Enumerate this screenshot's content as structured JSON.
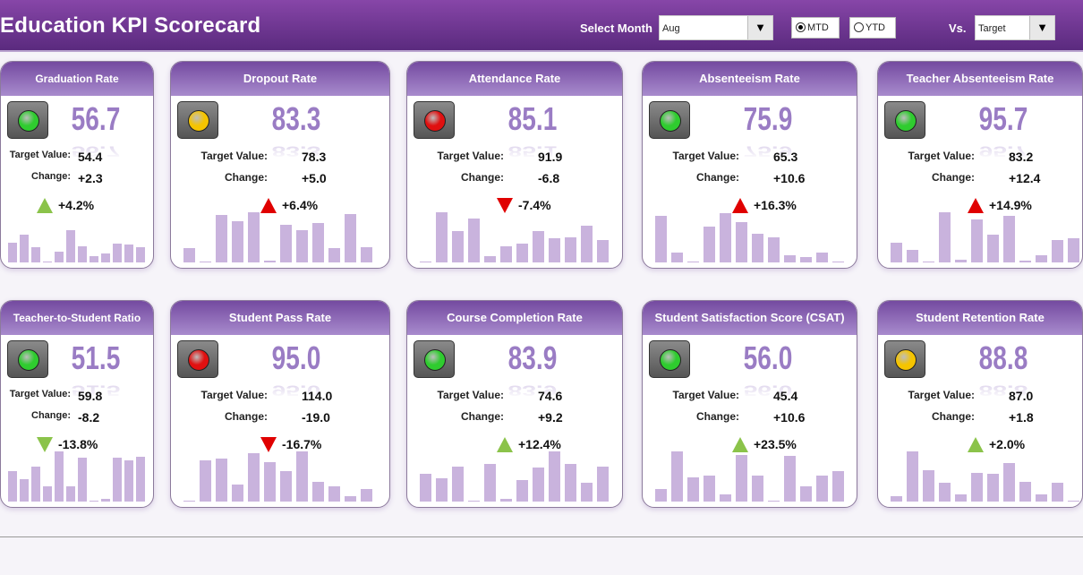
{
  "header": {
    "title": "Education KPI Scorecard",
    "select_month_label": "Select Month",
    "month": "Aug",
    "mtd": "MTD",
    "ytd": "YTD",
    "period_selected": "MTD",
    "vs_label": "Vs.",
    "vs_value": "Target",
    "dropdown_icon": "▼"
  },
  "labels": {
    "target": "Target Value:",
    "change": "Change:"
  },
  "colors": {
    "green": "#8bc34a",
    "red": "#e00000",
    "light_green": "#2fcc2f",
    "light_red": "#e01010",
    "light_yellow": "#f5c400",
    "bar": "#c9b3dd",
    "value": "#9a7cc4"
  },
  "cards": [
    {
      "title": "Graduation Rate",
      "value": "56.7",
      "target": "54.4",
      "change": "+2.3",
      "pct": "+4.2%",
      "dir": "up",
      "arrow_color": "green",
      "light": "green",
      "bars": [
        40,
        55,
        30,
        2,
        22,
        65,
        33,
        12,
        18,
        38,
        35,
        30
      ]
    },
    {
      "title": "Dropout Rate",
      "value": "83.3",
      "target": "78.3",
      "change": "+5.0",
      "pct": "+6.4%",
      "dir": "up",
      "arrow_color": "red",
      "light": "yellow",
      "bars": [
        28,
        2,
        95,
        82,
        100,
        4,
        75,
        65,
        78,
        28,
        96,
        30
      ]
    },
    {
      "title": "Attendance Rate",
      "value": "85.1",
      "target": "91.9",
      "change": "-6.8",
      "pct": "-7.4%",
      "dir": "down",
      "arrow_color": "red",
      "light": "red",
      "bars": [
        2,
        100,
        62,
        87,
        12,
        32,
        37,
        62,
        48,
        50,
        74,
        44
      ]
    },
    {
      "title": "Absenteeism Rate",
      "value": "75.9",
      "target": "65.3",
      "change": "+10.6",
      "pct": "+16.3%",
      "dir": "up",
      "arrow_color": "red",
      "light": "green",
      "bars": [
        92,
        20,
        1,
        72,
        98,
        80,
        58,
        50,
        15,
        10,
        20,
        1
      ]
    },
    {
      "title": "Teacher Absenteeism Rate",
      "value": "95.7",
      "target": "83.2",
      "change": "+12.4",
      "pct": "+14.9%",
      "dir": "up",
      "arrow_color": "red",
      "light": "green",
      "bars": [
        40,
        25,
        2,
        100,
        5,
        85,
        55,
        92,
        4,
        14,
        45,
        48
      ]
    },
    {
      "title": "Teacher-to-Student Ratio",
      "value": "51.5",
      "target": "59.8",
      "change": "-8.2",
      "pct": "-13.8%",
      "dir": "down",
      "arrow_color": "green",
      "light": "green",
      "bars": [
        60,
        45,
        70,
        30,
        100,
        30,
        88,
        2,
        5,
        88,
        82,
        90
      ]
    },
    {
      "title": "Student Pass Rate",
      "value": "95.0",
      "target": "114.0",
      "change": "-19.0",
      "pct": "-16.7%",
      "dir": "down",
      "arrow_color": "red",
      "light": "red",
      "bars": [
        2,
        82,
        86,
        34,
        96,
        78,
        60,
        100,
        40,
        30,
        11,
        25
      ]
    },
    {
      "title": "Course Completion Rate",
      "value": "83.9",
      "target": "74.6",
      "change": "+9.2",
      "pct": "+12.4%",
      "dir": "up",
      "arrow_color": "green",
      "light": "green",
      "bars": [
        55,
        47,
        70,
        2,
        75,
        6,
        43,
        68,
        100,
        75,
        37,
        70
      ]
    },
    {
      "title": "Student Satisfaction Score (CSAT)",
      "value": "56.0",
      "target": "45.4",
      "change": "+10.6",
      "pct": "+23.5%",
      "dir": "up",
      "arrow_color": "green",
      "light": "green",
      "bars": [
        25,
        100,
        48,
        52,
        14,
        93,
        51,
        1,
        91,
        31,
        51,
        61
      ]
    },
    {
      "title": "Student Retention Rate",
      "value": "88.8",
      "target": "87.0",
      "change": "+1.8",
      "pct": "+2.0%",
      "dir": "up",
      "arrow_color": "green",
      "light": "yellow",
      "bars": [
        10,
        100,
        63,
        37,
        14,
        57,
        56,
        77,
        39,
        14,
        38,
        1
      ]
    }
  ]
}
